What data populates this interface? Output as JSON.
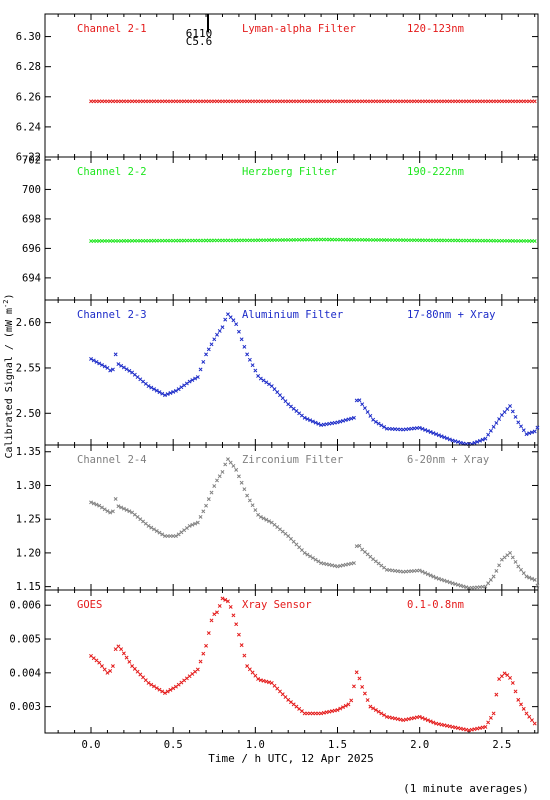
{
  "ylabel": "Calibrated Signal / (mW m",
  "ylabel_sup": "-2",
  "ylabel_end": ")",
  "xlabel": "Time / h UTC, 12 Apr 2025",
  "footnote": "(1 minute averages)",
  "marker_label_a": "6110",
  "marker_label_b": "C5.6",
  "x_ticks": [
    "0.0",
    "0.5",
    "1.0",
    "1.5",
    "2.0",
    "2.5"
  ],
  "chart_data": [
    {
      "type": "scatter",
      "panel": 1,
      "channel": "Channel 2-1",
      "filter": "Lyman-alpha Filter",
      "band": "120-123nm",
      "color": "#e41a1a",
      "xlim": [
        -0.28,
        2.72
      ],
      "ylim": [
        6.22,
        6.315
      ],
      "yticks": [
        "6.30",
        "6.28",
        "6.26",
        "6.24",
        "6.22"
      ],
      "x": [
        0.0,
        2.7
      ],
      "y": [
        6.257,
        6.257
      ]
    },
    {
      "type": "scatter",
      "panel": 2,
      "channel": "Channel 2-2",
      "filter": "Herzberg Filter",
      "band": "190-222nm",
      "color": "#1ee61e",
      "xlim": [
        -0.28,
        2.72
      ],
      "ylim": [
        692.5,
        702.2
      ],
      "yticks": [
        "702",
        "700",
        "698",
        "696",
        "694"
      ],
      "x": [
        0.0,
        1.0,
        1.4,
        2.7
      ],
      "y": [
        696.5,
        696.55,
        696.6,
        696.5
      ]
    },
    {
      "type": "scatter",
      "panel": 3,
      "channel": "Channel 2-3",
      "filter": "Aluminium Filter",
      "band": "17-80nm + Xray",
      "color": "#1c2bc8",
      "xlim": [
        -0.28,
        2.72
      ],
      "ylim": [
        2.465,
        2.625
      ],
      "yticks": [
        "2.60",
        "2.55",
        "2.50"
      ],
      "x": [
        0.0,
        0.05,
        0.1,
        0.13,
        0.15,
        0.16,
        0.25,
        0.35,
        0.45,
        0.52,
        0.6,
        0.65,
        0.7,
        0.76,
        0.8,
        0.83,
        0.88,
        0.95,
        1.02,
        1.1,
        1.2,
        1.3,
        1.4,
        1.5,
        1.6,
        1.62,
        1.65,
        1.72,
        1.8,
        1.9,
        2.0,
        2.1,
        2.2,
        2.3,
        2.4,
        2.45,
        2.5,
        2.55,
        2.6,
        2.65,
        2.7,
        2.72
      ],
      "y": [
        2.56,
        2.555,
        2.55,
        2.545,
        2.565,
        2.555,
        2.545,
        2.53,
        2.52,
        2.525,
        2.535,
        2.54,
        2.565,
        2.585,
        2.595,
        2.61,
        2.6,
        2.565,
        2.54,
        2.53,
        2.51,
        2.495,
        2.487,
        2.49,
        2.495,
        2.518,
        2.51,
        2.492,
        2.483,
        2.482,
        2.484,
        2.477,
        2.47,
        2.465,
        2.472,
        2.485,
        2.498,
        2.508,
        2.49,
        2.477,
        2.48,
        2.485
      ]
    },
    {
      "type": "scatter",
      "panel": 4,
      "channel": "Channel 2-4",
      "filter": "Zirconium Filter",
      "band": "6-20nm + Xray",
      "color": "#808080",
      "xlim": [
        -0.28,
        2.72
      ],
      "ylim": [
        1.145,
        1.36
      ],
      "yticks": [
        "1.35",
        "1.30",
        "1.25",
        "1.20",
        "1.15"
      ],
      "x": [
        0.0,
        0.05,
        0.1,
        0.13,
        0.15,
        0.16,
        0.25,
        0.35,
        0.45,
        0.52,
        0.6,
        0.65,
        0.7,
        0.76,
        0.8,
        0.83,
        0.88,
        0.95,
        1.02,
        1.1,
        1.2,
        1.3,
        1.4,
        1.5,
        1.6,
        1.62,
        1.65,
        1.72,
        1.8,
        1.9,
        2.0,
        2.1,
        2.2,
        2.3,
        2.4,
        2.45,
        2.5,
        2.55,
        2.6,
        2.65,
        2.7,
        2.72
      ],
      "y": [
        1.275,
        1.27,
        1.262,
        1.258,
        1.28,
        1.27,
        1.26,
        1.24,
        1.225,
        1.225,
        1.24,
        1.245,
        1.27,
        1.305,
        1.32,
        1.34,
        1.325,
        1.285,
        1.255,
        1.245,
        1.225,
        1.2,
        1.185,
        1.18,
        1.185,
        1.215,
        1.205,
        1.19,
        1.175,
        1.172,
        1.174,
        1.163,
        1.155,
        1.148,
        1.15,
        1.165,
        1.19,
        1.2,
        1.18,
        1.165,
        1.16,
        1.15
      ]
    },
    {
      "type": "scatter",
      "panel": 5,
      "channel": "GOES",
      "filter": "Xray Sensor",
      "band": "0.1-0.8nm",
      "color": "#e41a1a",
      "xlim": [
        -0.28,
        2.72
      ],
      "ylim": [
        0.00222,
        0.00645
      ],
      "yticks": [
        "0.006",
        "0.005",
        "0.004",
        "0.003"
      ],
      "x": [
        0.0,
        0.05,
        0.1,
        0.13,
        0.15,
        0.17,
        0.25,
        0.35,
        0.45,
        0.52,
        0.6,
        0.65,
        0.7,
        0.74,
        0.77,
        0.8,
        0.84,
        0.88,
        0.95,
        1.02,
        1.1,
        1.2,
        1.3,
        1.4,
        1.5,
        1.58,
        1.62,
        1.64,
        1.7,
        1.8,
        1.9,
        2.0,
        2.1,
        2.2,
        2.3,
        2.4,
        2.45,
        2.48,
        2.52,
        2.56,
        2.6,
        2.65,
        2.7
      ],
      "y": [
        0.0045,
        0.0043,
        0.004,
        0.0041,
        0.0047,
        0.0048,
        0.0042,
        0.0037,
        0.0034,
        0.0036,
        0.0039,
        0.0041,
        0.0048,
        0.0057,
        0.0058,
        0.0062,
        0.0061,
        0.0055,
        0.0042,
        0.0038,
        0.0037,
        0.0032,
        0.0028,
        0.0028,
        0.0029,
        0.0031,
        0.0041,
        0.0037,
        0.003,
        0.0027,
        0.0026,
        0.0027,
        0.0025,
        0.0024,
        0.0023,
        0.0024,
        0.0028,
        0.0038,
        0.004,
        0.0038,
        0.0032,
        0.0028,
        0.0025
      ]
    }
  ]
}
